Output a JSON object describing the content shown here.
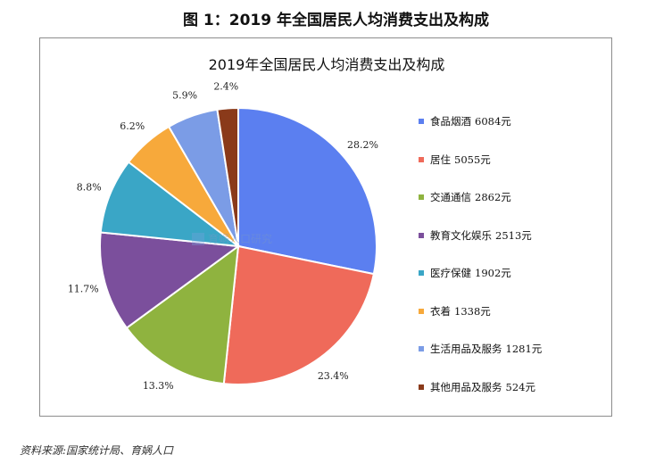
{
  "figure_title": "图 1：2019 年全国居民人均消费支出及构成",
  "source": "资料来源:国家统计局、育娲人口",
  "watermark": "育娲人口研究",
  "chart_data": {
    "type": "pie",
    "title": "2019年全国居民人均消费支出及构成",
    "slices": [
      {
        "name": "食品烟酒",
        "amount": "6084元",
        "value": 6084,
        "percent": "28.2%",
        "color": "#5b7ff0"
      },
      {
        "name": "居住",
        "amount": "5055元",
        "value": 5055,
        "percent": "23.4%",
        "color": "#ef6a5a"
      },
      {
        "name": "交通通信",
        "amount": "2862元",
        "value": 2862,
        "percent": "13.3%",
        "color": "#8fb33f"
      },
      {
        "name": "教育文化娱乐",
        "amount": "2513元",
        "value": 2513,
        "percent": "11.7%",
        "color": "#7b4f9c"
      },
      {
        "name": "医疗保健",
        "amount": "1902元",
        "value": 1902,
        "percent": "8.8%",
        "color": "#3aa6c6"
      },
      {
        "name": "衣着",
        "amount": "1338元",
        "value": 1338,
        "percent": "6.2%",
        "color": "#f7a93b"
      },
      {
        "name": "生活用品及服务",
        "amount": "1281元",
        "value": 1281,
        "percent": "5.9%",
        "color": "#7b9ce6"
      },
      {
        "name": "其他用品及服务",
        "amount": "524元",
        "value": 524,
        "percent": "2.4%",
        "color": "#8a3a1a"
      }
    ],
    "start": "12 o'clock",
    "direction": "clockwise",
    "legend_position": "right"
  }
}
